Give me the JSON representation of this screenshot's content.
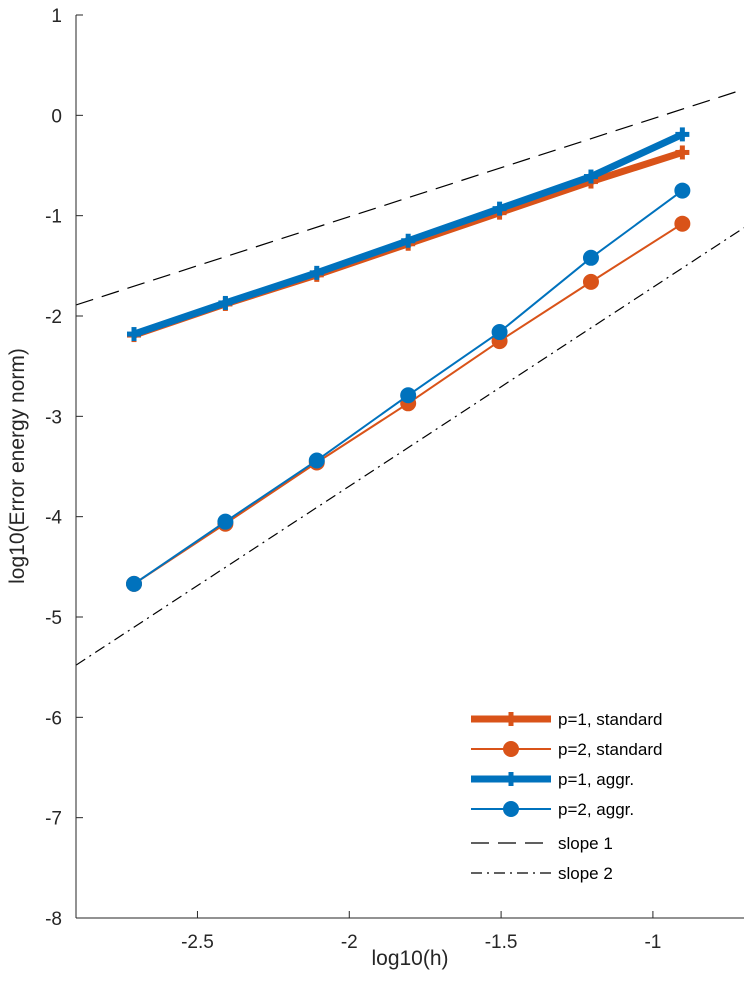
{
  "chart_data": {
    "type": "line",
    "xlabel": "log10(h)",
    "ylabel": "log10(Error energy norm)",
    "xlim": [
      -2.9,
      -0.7
    ],
    "ylim": [
      -8,
      1
    ],
    "xticks": [
      -2.5,
      -2,
      -1.5,
      -1
    ],
    "xtick_labels": [
      "-2.5",
      "-2",
      "-1.5",
      "-1"
    ],
    "yticks": [
      -8,
      -7,
      -6,
      -5,
      -4,
      -3,
      -2,
      -1,
      0,
      1
    ],
    "ytick_labels": [
      "-8",
      "-7",
      "-6",
      "-5",
      "-4",
      "-3",
      "-2",
      "-1",
      "0",
      "1"
    ],
    "grid": false,
    "legend_position": "bottom-right",
    "series": [
      {
        "name": "p=1, standard",
        "color": "#D95319",
        "marker": "plus",
        "style": "solid",
        "weight": "thick",
        "x": [
          -2.709,
          -2.408,
          -2.107,
          -1.806,
          -1.505,
          -1.204,
          -0.903
        ],
        "y": [
          -2.19,
          -1.88,
          -1.59,
          -1.28,
          -0.97,
          -0.66,
          -0.37
        ]
      },
      {
        "name": "p=2, standard",
        "color": "#D95319",
        "marker": "circle",
        "style": "solid",
        "weight": "thin",
        "x": [
          -2.709,
          -2.408,
          -2.107,
          -1.806,
          -1.505,
          -1.204,
          -0.903
        ],
        "y": [
          -4.67,
          -4.07,
          -3.46,
          -2.87,
          -2.25,
          -1.66,
          -1.08
        ]
      },
      {
        "name": "p=1, aggr.",
        "color": "#0072BD",
        "marker": "plus",
        "style": "solid",
        "weight": "thick",
        "x": [
          -2.709,
          -2.408,
          -2.107,
          -1.806,
          -1.505,
          -1.204,
          -0.903
        ],
        "y": [
          -2.18,
          -1.87,
          -1.57,
          -1.25,
          -0.93,
          -0.61,
          -0.19
        ]
      },
      {
        "name": "p=2, aggr.",
        "color": "#0072BD",
        "marker": "circle",
        "style": "solid",
        "weight": "thin",
        "x": [
          -2.709,
          -2.408,
          -2.107,
          -1.806,
          -1.505,
          -1.204,
          -0.903
        ],
        "y": [
          -4.67,
          -4.05,
          -3.44,
          -2.79,
          -2.16,
          -1.42,
          -0.75
        ]
      },
      {
        "name": "slope 1",
        "color": "#000000",
        "marker": "none",
        "style": "dashed",
        "weight": "hair",
        "x": [
          -2.9,
          -0.7
        ],
        "y": [
          -1.89,
          0.26
        ]
      },
      {
        "name": "slope 2",
        "color": "#000000",
        "marker": "none",
        "style": "dashdot",
        "weight": "hair",
        "x": [
          -2.9,
          -0.7
        ],
        "y": [
          -5.48,
          -1.12
        ]
      }
    ]
  }
}
